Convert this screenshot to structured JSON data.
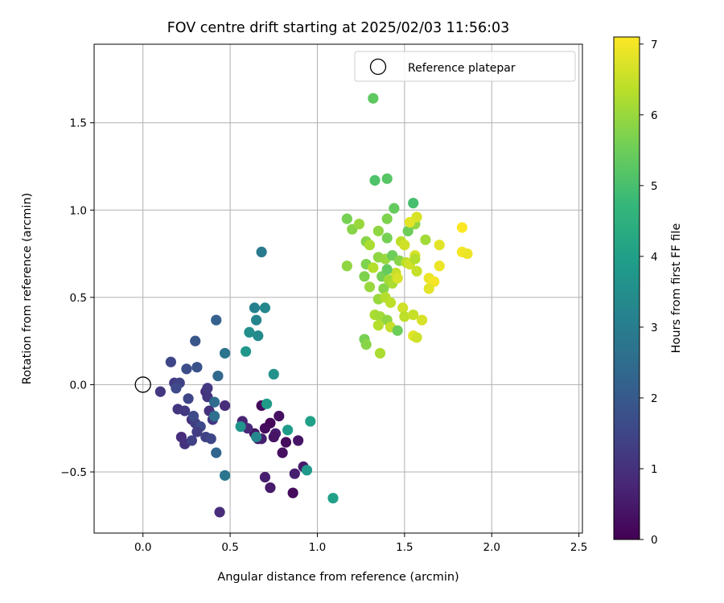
{
  "chart_data": {
    "type": "scatter",
    "title": "FOV centre drift starting at 2025/02/03 11:56:03",
    "xlabel": "Angular distance from reference (arcmin)",
    "ylabel": "Rotation from reference (arcmin)",
    "xlim": [
      -0.28,
      2.52
    ],
    "ylim": [
      -0.85,
      1.95
    ],
    "x_ticks": [
      0.0,
      0.5,
      1.0,
      1.5,
      2.0,
      2.5
    ],
    "x_tick_labels": [
      "0.0",
      "0.5",
      "1.0",
      "1.5",
      "2.0",
      "2.5"
    ],
    "y_ticks": [
      -0.5,
      0.0,
      0.5,
      1.0,
      1.5
    ],
    "y_tick_labels": [
      "−0.5",
      "0.0",
      "0.5",
      "1.0",
      "1.5"
    ],
    "grid": true,
    "legend": {
      "position": "top-right",
      "entries": [
        {
          "label": "Reference platepar",
          "marker": "open-circle",
          "x": 0.0,
          "y": 0.0
        }
      ]
    },
    "colorbar": {
      "label": "Hours from first FF file",
      "colormap": "viridis",
      "range": [
        0,
        7.1
      ],
      "ticks": [
        0,
        1,
        2,
        3,
        4,
        5,
        6,
        7
      ],
      "tick_labels": [
        "0",
        "1",
        "2",
        "3",
        "4",
        "5",
        "6",
        "7"
      ],
      "stops": [
        "#440154",
        "#482878",
        "#3e4989",
        "#31688e",
        "#26828e",
        "#1f9e89",
        "#35b779",
        "#6ece58",
        "#b5de2b",
        "#fde725"
      ]
    },
    "points": [
      {
        "x": 0.68,
        "y": -0.12,
        "h": 0.2
      },
      {
        "x": 0.78,
        "y": -0.18,
        "h": 0.3
      },
      {
        "x": 0.73,
        "y": -0.22,
        "h": 0.1
      },
      {
        "x": 0.64,
        "y": -0.28,
        "h": 0.4
      },
      {
        "x": 0.7,
        "y": -0.25,
        "h": 0.2
      },
      {
        "x": 0.66,
        "y": -0.31,
        "h": 0.3
      },
      {
        "x": 0.76,
        "y": -0.28,
        "h": 0.5
      },
      {
        "x": 0.82,
        "y": -0.33,
        "h": 0.2
      },
      {
        "x": 0.89,
        "y": -0.32,
        "h": 0.4
      },
      {
        "x": 0.8,
        "y": -0.39,
        "h": 0.3
      },
      {
        "x": 0.92,
        "y": -0.47,
        "h": 0.5
      },
      {
        "x": 0.87,
        "y": -0.51,
        "h": 0.6
      },
      {
        "x": 0.7,
        "y": -0.53,
        "h": 0.6
      },
      {
        "x": 0.73,
        "y": -0.59,
        "h": 0.5
      },
      {
        "x": 0.86,
        "y": -0.62,
        "h": 0.2
      },
      {
        "x": 0.57,
        "y": -0.21,
        "h": 0.7
      },
      {
        "x": 0.68,
        "y": -0.31,
        "h": 0.6
      },
      {
        "x": 0.75,
        "y": -0.3,
        "h": 0.4
      },
      {
        "x": 0.6,
        "y": -0.25,
        "h": 0.8
      },
      {
        "x": 0.44,
        "y": -0.73,
        "h": 0.9
      },
      {
        "x": 0.1,
        "y": -0.04,
        "h": 1.2
      },
      {
        "x": 0.16,
        "y": 0.13,
        "h": 1.5
      },
      {
        "x": 0.18,
        "y": 0.01,
        "h": 1.3
      },
      {
        "x": 0.21,
        "y": 0.01,
        "h": 1.4
      },
      {
        "x": 0.19,
        "y": -0.02,
        "h": 1.6
      },
      {
        "x": 0.25,
        "y": 0.09,
        "h": 1.7
      },
      {
        "x": 0.31,
        "y": 0.1,
        "h": 1.8
      },
      {
        "x": 0.3,
        "y": 0.25,
        "h": 1.9
      },
      {
        "x": 0.2,
        "y": -0.14,
        "h": 1.1
      },
      {
        "x": 0.24,
        "y": -0.15,
        "h": 1.2
      },
      {
        "x": 0.26,
        "y": -0.08,
        "h": 1.5
      },
      {
        "x": 0.28,
        "y": -0.2,
        "h": 1.0
      },
      {
        "x": 0.3,
        "y": -0.22,
        "h": 1.3
      },
      {
        "x": 0.22,
        "y": -0.3,
        "h": 0.9
      },
      {
        "x": 0.24,
        "y": -0.34,
        "h": 1.0
      },
      {
        "x": 0.28,
        "y": -0.32,
        "h": 1.4
      },
      {
        "x": 0.33,
        "y": -0.24,
        "h": 1.6
      },
      {
        "x": 0.31,
        "y": -0.27,
        "h": 1.3
      },
      {
        "x": 0.36,
        "y": -0.04,
        "h": 0.9
      },
      {
        "x": 0.37,
        "y": -0.07,
        "h": 1.1
      },
      {
        "x": 0.37,
        "y": -0.02,
        "h": 1.2
      },
      {
        "x": 0.38,
        "y": -0.15,
        "h": 1.0
      },
      {
        "x": 0.4,
        "y": -0.2,
        "h": 1.2
      },
      {
        "x": 0.36,
        "y": -0.3,
        "h": 1.4
      },
      {
        "x": 0.39,
        "y": -0.31,
        "h": 1.5
      },
      {
        "x": 0.47,
        "y": -0.12,
        "h": 0.9
      },
      {
        "x": 0.29,
        "y": -0.18,
        "h": 1.6
      },
      {
        "x": 0.42,
        "y": 0.37,
        "h": 2.2
      },
      {
        "x": 0.41,
        "y": -0.1,
        "h": 2.5
      },
      {
        "x": 0.43,
        "y": 0.05,
        "h": 2.4
      },
      {
        "x": 0.41,
        "y": -0.18,
        "h": 2.6
      },
      {
        "x": 0.42,
        "y": -0.39,
        "h": 2.3
      },
      {
        "x": 0.47,
        "y": 0.18,
        "h": 2.7
      },
      {
        "x": 0.47,
        "y": -0.52,
        "h": 2.8
      },
      {
        "x": 0.68,
        "y": 0.76,
        "h": 2.9
      },
      {
        "x": 0.64,
        "y": 0.44,
        "h": 3.1
      },
      {
        "x": 0.7,
        "y": 0.44,
        "h": 3.3
      },
      {
        "x": 0.65,
        "y": 0.37,
        "h": 3.2
      },
      {
        "x": 0.61,
        "y": 0.3,
        "h": 3.5
      },
      {
        "x": 0.66,
        "y": 0.28,
        "h": 3.4
      },
      {
        "x": 0.59,
        "y": 0.19,
        "h": 3.8
      },
      {
        "x": 0.75,
        "y": 0.06,
        "h": 3.6
      },
      {
        "x": 0.71,
        "y": -0.11,
        "h": 3.9
      },
      {
        "x": 0.56,
        "y": -0.24,
        "h": 3.7
      },
      {
        "x": 0.65,
        "y": -0.3,
        "h": 3.3
      },
      {
        "x": 0.83,
        "y": -0.26,
        "h": 3.9
      },
      {
        "x": 0.96,
        "y": -0.21,
        "h": 4.0
      },
      {
        "x": 0.94,
        "y": -0.49,
        "h": 3.8
      },
      {
        "x": 1.09,
        "y": -0.65,
        "h": 4.0
      },
      {
        "x": 1.32,
        "y": 1.64,
        "h": 5.3
      },
      {
        "x": 1.4,
        "y": 1.18,
        "h": 5.2
      },
      {
        "x": 1.33,
        "y": 1.17,
        "h": 5.1
      },
      {
        "x": 1.55,
        "y": 1.04,
        "h": 5.0
      },
      {
        "x": 1.44,
        "y": 1.01,
        "h": 5.4
      },
      {
        "x": 1.17,
        "y": 0.95,
        "h": 5.6
      },
      {
        "x": 1.2,
        "y": 0.89,
        "h": 5.8
      },
      {
        "x": 1.24,
        "y": 0.92,
        "h": 6.0
      },
      {
        "x": 1.4,
        "y": 0.95,
        "h": 5.7
      },
      {
        "x": 1.35,
        "y": 0.88,
        "h": 5.9
      },
      {
        "x": 1.28,
        "y": 0.82,
        "h": 5.8
      },
      {
        "x": 1.3,
        "y": 0.8,
        "h": 6.2
      },
      {
        "x": 1.4,
        "y": 0.84,
        "h": 5.6
      },
      {
        "x": 1.48,
        "y": 0.82,
        "h": 6.4
      },
      {
        "x": 1.5,
        "y": 0.8,
        "h": 6.6
      },
      {
        "x": 1.52,
        "y": 0.88,
        "h": 5.5
      },
      {
        "x": 1.56,
        "y": 0.92,
        "h": 5.9
      },
      {
        "x": 1.62,
        "y": 0.83,
        "h": 6.1
      },
      {
        "x": 1.53,
        "y": 0.93,
        "h": 6.8
      },
      {
        "x": 1.57,
        "y": 0.96,
        "h": 6.7
      },
      {
        "x": 1.35,
        "y": 0.73,
        "h": 5.9
      },
      {
        "x": 1.39,
        "y": 0.72,
        "h": 6.0
      },
      {
        "x": 1.43,
        "y": 0.74,
        "h": 5.5
      },
      {
        "x": 1.47,
        "y": 0.71,
        "h": 5.8
      },
      {
        "x": 1.28,
        "y": 0.69,
        "h": 5.7
      },
      {
        "x": 1.32,
        "y": 0.67,
        "h": 6.3
      },
      {
        "x": 1.37,
        "y": 0.62,
        "h": 5.6
      },
      {
        "x": 1.41,
        "y": 0.6,
        "h": 6.1
      },
      {
        "x": 1.45,
        "y": 0.64,
        "h": 6.5
      },
      {
        "x": 1.43,
        "y": 0.58,
        "h": 6.2
      },
      {
        "x": 1.38,
        "y": 0.55,
        "h": 5.8
      },
      {
        "x": 1.3,
        "y": 0.56,
        "h": 6.0
      },
      {
        "x": 1.27,
        "y": 0.62,
        "h": 5.7
      },
      {
        "x": 1.17,
        "y": 0.68,
        "h": 5.9
      },
      {
        "x": 1.51,
        "y": 0.7,
        "h": 6.4
      },
      {
        "x": 1.53,
        "y": 0.69,
        "h": 6.6
      },
      {
        "x": 1.56,
        "y": 0.74,
        "h": 6.7
      },
      {
        "x": 1.56,
        "y": 0.72,
        "h": 6.3
      },
      {
        "x": 1.57,
        "y": 0.65,
        "h": 6.5
      },
      {
        "x": 1.7,
        "y": 0.8,
        "h": 6.8
      },
      {
        "x": 1.7,
        "y": 0.68,
        "h": 6.9
      },
      {
        "x": 1.64,
        "y": 0.61,
        "h": 6.9
      },
      {
        "x": 1.67,
        "y": 0.59,
        "h": 7.0
      },
      {
        "x": 1.64,
        "y": 0.55,
        "h": 6.8
      },
      {
        "x": 1.83,
        "y": 0.9,
        "h": 7.1
      },
      {
        "x": 1.83,
        "y": 0.76,
        "h": 7.0
      },
      {
        "x": 1.86,
        "y": 0.75,
        "h": 6.9
      },
      {
        "x": 1.35,
        "y": 0.49,
        "h": 6.0
      },
      {
        "x": 1.39,
        "y": 0.5,
        "h": 6.3
      },
      {
        "x": 1.42,
        "y": 0.47,
        "h": 6.4
      },
      {
        "x": 1.33,
        "y": 0.4,
        "h": 6.2
      },
      {
        "x": 1.36,
        "y": 0.39,
        "h": 6.1
      },
      {
        "x": 1.4,
        "y": 0.37,
        "h": 5.9
      },
      {
        "x": 1.42,
        "y": 0.33,
        "h": 6.5
      },
      {
        "x": 1.35,
        "y": 0.34,
        "h": 6.3
      },
      {
        "x": 1.49,
        "y": 0.44,
        "h": 6.6
      },
      {
        "x": 1.5,
        "y": 0.39,
        "h": 6.4
      },
      {
        "x": 1.55,
        "y": 0.4,
        "h": 6.5
      },
      {
        "x": 1.6,
        "y": 0.37,
        "h": 6.7
      },
      {
        "x": 1.55,
        "y": 0.28,
        "h": 6.8
      },
      {
        "x": 1.57,
        "y": 0.27,
        "h": 6.6
      },
      {
        "x": 1.46,
        "y": 0.31,
        "h": 5.5
      },
      {
        "x": 1.27,
        "y": 0.26,
        "h": 5.6
      },
      {
        "x": 1.28,
        "y": 0.23,
        "h": 5.8
      },
      {
        "x": 1.36,
        "y": 0.18,
        "h": 6.2
      },
      {
        "x": 1.46,
        "y": 0.61,
        "h": 6.7
      },
      {
        "x": 1.4,
        "y": 0.66,
        "h": 5.4
      }
    ]
  }
}
